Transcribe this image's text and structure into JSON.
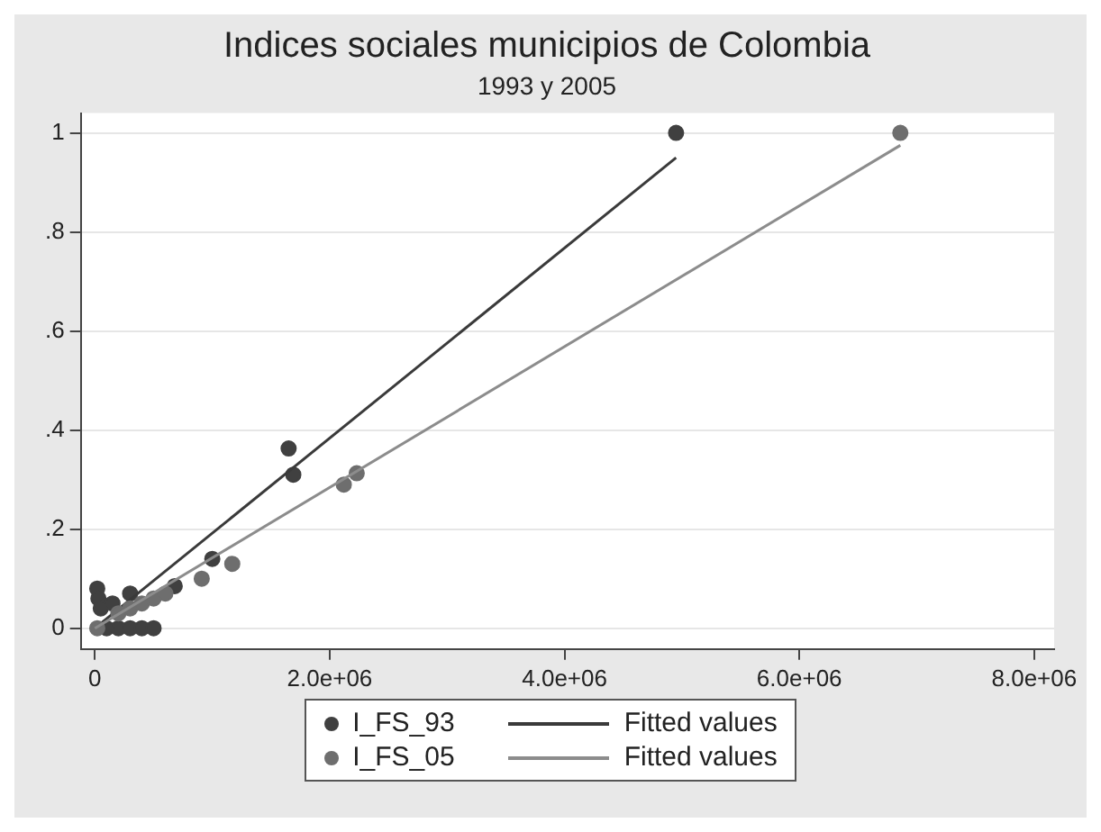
{
  "chart_data": {
    "type": "scatter",
    "title": "Indices sociales municipios de Colombia",
    "subtitle": "1993 y 2005",
    "xlim": [
      -120000,
      8170000
    ],
    "xticks": [
      0,
      {
        "value": 2000000,
        "label": "2.0e+06"
      },
      {
        "value": 4000000,
        "label": "4.0e+06"
      },
      {
        "value": 6000000,
        "label": "6.0e+06"
      },
      {
        "value": 8000000,
        "label": "8.0e+06"
      }
    ],
    "ylim": [
      -0.042,
      1.04
    ],
    "yticks": [
      0,
      {
        "value": 0.2,
        "label": ".2"
      },
      {
        "value": 0.4,
        "label": ".4"
      },
      {
        "value": 0.6,
        "label": ".6"
      },
      {
        "value": 0.8,
        "label": ".8"
      },
      {
        "value": 1,
        "label": "1"
      }
    ],
    "grid": "y",
    "legend": "bottom",
    "series": [
      {
        "name": "I_FS_93",
        "type": "scatter",
        "marker": "circle",
        "color": "#404040",
        "x": [
          4950000,
          1650000,
          1690000,
          1000000,
          680000,
          20000,
          30000,
          50000,
          150000,
          300000,
          200000,
          300000,
          400000,
          500000,
          100000
        ],
        "values": [
          1,
          0.363,
          0.31,
          0.14,
          0.085,
          0.08,
          0.06,
          0.04,
          0.05,
          0.07,
          0,
          0,
          0,
          0,
          0
        ]
      },
      {
        "name": "Fitted values",
        "type": "line",
        "marker": "none",
        "color": "#3a3a3a",
        "x": [
          0,
          4950000
        ],
        "values": [
          0,
          0.95
        ]
      },
      {
        "name": "I_FS_05",
        "type": "scatter",
        "marker": "circle",
        "color": "#6e6e6e",
        "x": [
          6860000,
          2120000,
          2230000,
          910000,
          1170000,
          20000,
          200000,
          300000,
          400000,
          500000,
          600000
        ],
        "values": [
          1,
          0.29,
          0.313,
          0.1,
          0.13,
          0,
          0.03,
          0.04,
          0.05,
          0.06,
          0.07
        ]
      },
      {
        "name": "Fitted values",
        "type": "line",
        "marker": "none",
        "color": "#8c8c8c",
        "x": [
          0,
          6860000
        ],
        "values": [
          0,
          0.975
        ]
      }
    ]
  }
}
